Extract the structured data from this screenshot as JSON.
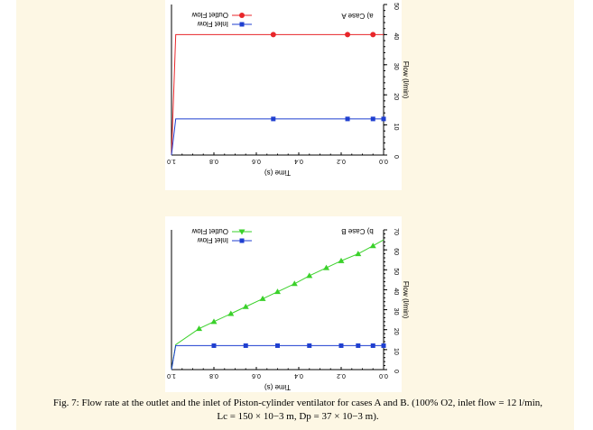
{
  "caption": {
    "line1": "Fig. 7: Flow rate at the outlet and the inlet of Piston-cylinder ventilator for cases A and B. (100% O2, inlet flow = 12 l/min,",
    "line2": "Lc = 150 × 10−3 m, Dp = 37 × 10−3 m)."
  },
  "chart_data": [
    {
      "type": "line",
      "panel_label": "a) Case A",
      "xlabel": "Time (s)",
      "ylabel": "Flow (l/min)",
      "xlim": [
        0.0,
        1.0
      ],
      "ylim": [
        0,
        50
      ],
      "x_reversed": true,
      "y_axis_side": "right",
      "rendered_mirrored_upside_down": true,
      "x_ticks": [
        0.0,
        0.2,
        0.4,
        0.6,
        0.8,
        1.0
      ],
      "x_tick_labels": [
        "0.0",
        "0.2",
        "0.4",
        "0.6",
        "0.8",
        "1.0"
      ],
      "y_ticks": [
        0,
        10,
        20,
        30,
        40,
        50
      ],
      "y_tick_labels": [
        "0",
        "10",
        "20",
        "30",
        "40",
        "50"
      ],
      "legend_position": "top-right",
      "series": [
        {
          "name": "Outlet Flow",
          "color": "#e8262a",
          "marker": "circle",
          "x": [
            0.0,
            0.02,
            0.1,
            0.2,
            0.3,
            0.4,
            0.5,
            0.6,
            0.7,
            0.8,
            0.9,
            0.98,
            1.0
          ],
          "y": [
            40,
            40,
            40,
            40,
            40,
            40,
            40,
            40,
            40,
            40,
            40,
            40,
            0
          ],
          "marker_x": [
            0.05,
            0.17,
            0.52
          ]
        },
        {
          "name": "Inlet Flow",
          "color": "#1f3fd0",
          "marker": "square",
          "x": [
            0.0,
            0.02,
            0.1,
            0.2,
            0.3,
            0.4,
            0.5,
            0.6,
            0.7,
            0.8,
            0.9,
            0.98,
            1.0
          ],
          "y": [
            12,
            12,
            12,
            12,
            12,
            12,
            12,
            12,
            12,
            12,
            12,
            12,
            0
          ],
          "marker_x": [
            0.0,
            0.05,
            0.17,
            0.52
          ]
        }
      ]
    },
    {
      "type": "line",
      "panel_label": "b) Case B",
      "xlabel": "Time (s)",
      "ylabel": "Flow (l/min)",
      "xlim": [
        0.0,
        1.0
      ],
      "ylim": [
        0,
        70
      ],
      "x_reversed": true,
      "y_axis_side": "right",
      "rendered_mirrored_upside_down": true,
      "x_ticks": [
        0.0,
        0.2,
        0.4,
        0.6,
        0.8,
        1.0
      ],
      "x_tick_labels": [
        "0.0",
        "0.2",
        "0.4",
        "0.6",
        "0.8",
        "1.0"
      ],
      "y_ticks": [
        0,
        10,
        20,
        30,
        40,
        50,
        60,
        70
      ],
      "y_tick_labels": [
        "0",
        "10",
        "20",
        "30",
        "40",
        "50",
        "60",
        "70"
      ],
      "legend_position": "top-right",
      "series": [
        {
          "name": "Outlet Flow",
          "color": "#3ad12a",
          "marker": "triangle",
          "x": [
            0.0,
            0.05,
            0.12,
            0.2,
            0.27,
            0.35,
            0.42,
            0.5,
            0.57,
            0.65,
            0.72,
            0.8,
            0.87,
            0.98,
            1.0
          ],
          "y": [
            65,
            62,
            58,
            54.5,
            51,
            47,
            43,
            39,
            35.5,
            31.5,
            28,
            24,
            20.5,
            12.5,
            0
          ],
          "marker_x": [
            0.05,
            0.12,
            0.2,
            0.27,
            0.35,
            0.42,
            0.5,
            0.57,
            0.65,
            0.72,
            0.8,
            0.87
          ]
        },
        {
          "name": "Inlet Flow",
          "color": "#1f3fd0",
          "marker": "square",
          "x": [
            0.0,
            0.05,
            0.12,
            0.2,
            0.35,
            0.5,
            0.65,
            0.8,
            0.98,
            1.0
          ],
          "y": [
            12,
            12,
            12,
            12,
            12,
            12,
            12,
            12,
            12,
            0
          ],
          "marker_x": [
            0.0,
            0.05,
            0.12,
            0.2,
            0.35,
            0.5,
            0.65,
            0.8
          ]
        }
      ]
    }
  ]
}
